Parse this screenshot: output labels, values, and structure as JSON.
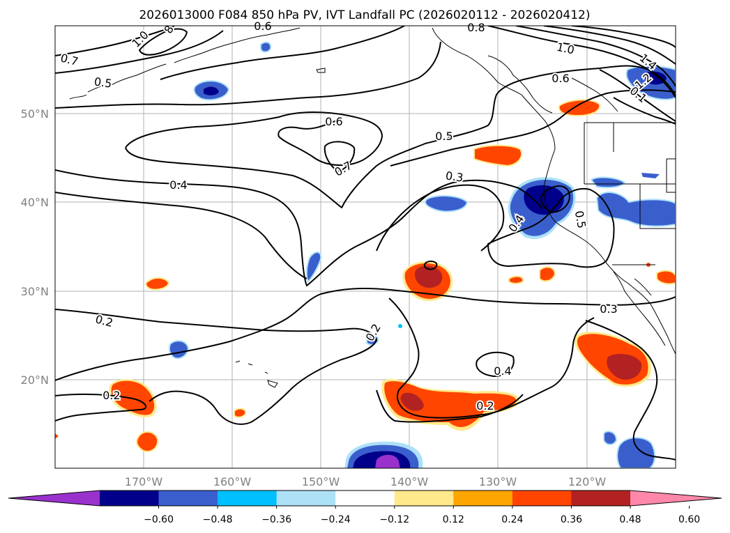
{
  "title": "2026013000 F084 850 hPa PV, IVT Landfall PC (2026020112 - 2026020412)",
  "map": {
    "lon_labels": [
      "170°W",
      "160°W",
      "150°W",
      "140°W",
      "130°W",
      "120°W"
    ],
    "lat_labels": [
      "50°N",
      "40°N",
      "30°N",
      "20°N"
    ]
  },
  "contour_labels": [
    "1.0",
    "8",
    "0.6",
    "0.8",
    "0.7",
    "0.5",
    "1.0",
    "0.6",
    "1.4",
    "1.2",
    "0.1",
    "0.6",
    "0.5",
    "0.7",
    "0.4",
    "0.3",
    "0.4",
    "0.5",
    "0.2",
    "0.2",
    "0.3",
    "0.4",
    "0.2",
    "0.2"
  ],
  "colorbar": {
    "colors": [
      "#9932CC",
      "#00008B",
      "#3A5FCD",
      "#00BFFF",
      "#ADE1F8",
      "#FFFFFF",
      "#FFE98A",
      "#FFA500",
      "#FF4500",
      "#B22222",
      "#FF88AA"
    ],
    "tick_labels": [
      "−0.60",
      "−0.48",
      "−0.36",
      "−0.24",
      "−0.12",
      "0.12",
      "0.24",
      "0.36",
      "0.48",
      "0.60"
    ]
  }
}
